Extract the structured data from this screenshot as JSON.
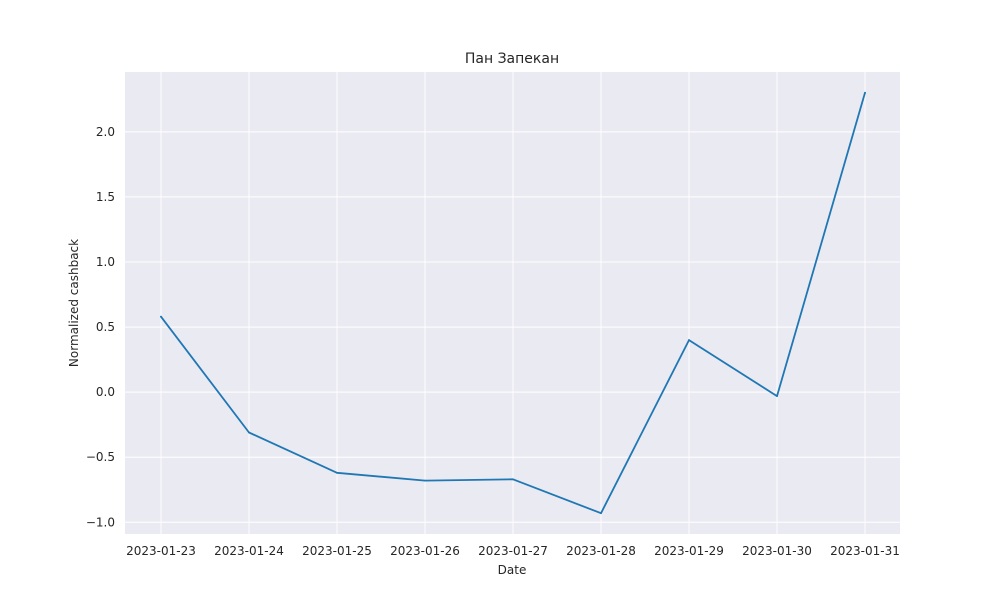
{
  "chart_data": {
    "type": "line",
    "title": "Пан Запекан",
    "xlabel": "Date",
    "ylabel": "Normalized cashback",
    "x": [
      "2023-01-23",
      "2023-01-24",
      "2023-01-25",
      "2023-01-26",
      "2023-01-27",
      "2023-01-28",
      "2023-01-29",
      "2023-01-30",
      "2023-01-31"
    ],
    "series": [
      {
        "values": [
          0.58,
          -0.31,
          -0.62,
          -0.68,
          -0.67,
          -0.93,
          0.4,
          -0.03,
          2.3
        ],
        "color": "#1f77b4"
      }
    ],
    "yticks": [
      -1.0,
      -0.5,
      0.0,
      0.5,
      1.0,
      1.5,
      2.0
    ],
    "ytick_labels": [
      "−1.0",
      "−0.5",
      "0.0",
      "0.5",
      "1.0",
      "1.5",
      "2.0"
    ],
    "ylim": [
      -1.09,
      2.46
    ],
    "grid": true,
    "colors": {
      "plot_background": "#eaeaf2",
      "grid": "#ffffff",
      "text": "#262626"
    }
  }
}
